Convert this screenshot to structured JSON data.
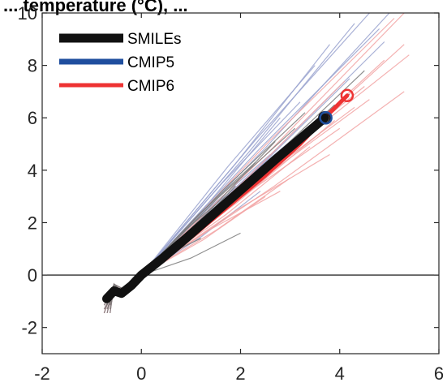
{
  "title": "... temperature (°C), ...",
  "chart_data": {
    "type": "line",
    "title": "",
    "xlabel": "",
    "ylabel": "",
    "xlim": [
      -2,
      6
    ],
    "ylim": [
      -3,
      10
    ],
    "xticks": [
      -2,
      0,
      2,
      4,
      6
    ],
    "yticks": [
      -2,
      0,
      2,
      4,
      6,
      8,
      10
    ],
    "xtick_labels": [
      "-2",
      "0",
      "2",
      "4",
      "6"
    ],
    "ytick_labels": [
      "-2",
      "0",
      "2",
      "4",
      "6",
      "8",
      "10"
    ],
    "grid": false,
    "zero_line": true,
    "legend": {
      "position": "top-left",
      "entries": [
        {
          "label": "SMILEs",
          "color": "#111111"
        },
        {
          "label": "CMIP5",
          "color": "#1f4e9e"
        },
        {
          "label": "CMIP6",
          "color": "#ee3333"
        }
      ]
    },
    "series": [
      {
        "name": "SMILEs",
        "color": "#111111",
        "x": [
          -0.7,
          -0.55,
          -0.4,
          -0.2,
          0.0,
          0.4,
          0.9,
          1.5,
          2.1,
          2.7,
          3.2,
          3.7
        ],
        "y": [
          -0.9,
          -0.6,
          -0.7,
          -0.4,
          0.0,
          0.6,
          1.4,
          2.4,
          3.4,
          4.4,
          5.2,
          6.0
        ],
        "end_marker": {
          "x": 3.7,
          "y": 6.0
        }
      },
      {
        "name": "CMIP5",
        "color": "#1f4e9e",
        "x": [
          -0.7,
          -0.55,
          -0.4,
          -0.2,
          0.0,
          0.4,
          0.9,
          1.5,
          2.1,
          2.7,
          3.2,
          3.72
        ],
        "y": [
          -0.85,
          -0.6,
          -0.65,
          -0.4,
          0.0,
          0.6,
          1.4,
          2.4,
          3.4,
          4.4,
          5.2,
          6.0
        ],
        "end_marker": {
          "x": 3.72,
          "y": 6.0
        }
      },
      {
        "name": "CMIP6",
        "color": "#ee3333",
        "x": [
          -0.7,
          -0.55,
          -0.4,
          -0.2,
          0.0,
          0.5,
          1.1,
          1.8,
          2.5,
          3.2,
          3.7,
          4.15
        ],
        "y": [
          -0.8,
          -0.6,
          -0.65,
          -0.4,
          0.0,
          0.7,
          1.6,
          2.7,
          3.8,
          5.0,
          6.0,
          6.85
        ],
        "end_marker": {
          "x": 4.15,
          "y": 6.85
        }
      }
    ],
    "ensemble_members": {
      "SMILEs": {
        "color": "#7a7a7a",
        "end_points": [
          [
            3.9,
            6.5
          ],
          [
            4.2,
            6.9
          ],
          [
            3.5,
            5.7
          ],
          [
            3.1,
            5.6
          ],
          [
            2.7,
            5.1
          ],
          [
            2.3,
            4.3
          ],
          [
            1.9,
            3.4
          ],
          [
            1.5,
            2.7
          ],
          [
            4.5,
            7.8
          ],
          [
            3.3,
            6.2
          ],
          [
            2.0,
            1.6
          ],
          [
            1.2,
            1.4
          ]
        ]
      },
      "CMIP5": {
        "color": "#9aa3cf",
        "end_points": [
          [
            5.0,
            10.0
          ],
          [
            4.6,
            10.0
          ],
          [
            4.3,
            9.6
          ],
          [
            4.8,
            9.4
          ],
          [
            3.8,
            8.8
          ],
          [
            3.5,
            8.0
          ],
          [
            4.9,
            8.9
          ],
          [
            3.2,
            6.6
          ],
          [
            2.8,
            6.0
          ],
          [
            3.0,
            5.1
          ],
          [
            2.4,
            3.2
          ],
          [
            2.6,
            4.6
          ],
          [
            4.2,
            7.5
          ]
        ]
      },
      "CMIP6": {
        "color": "#f2a3a3",
        "end_points": [
          [
            5.3,
            10.0
          ],
          [
            5.1,
            9.8
          ],
          [
            5.3,
            8.8
          ],
          [
            5.4,
            8.4
          ],
          [
            4.9,
            8.2
          ],
          [
            4.5,
            7.2
          ],
          [
            4.1,
            7.4
          ],
          [
            4.6,
            6.7
          ],
          [
            5.3,
            7.0
          ],
          [
            4.3,
            6.4
          ],
          [
            3.9,
            5.9
          ],
          [
            3.6,
            5.4
          ],
          [
            3.4,
            4.9
          ],
          [
            3.8,
            4.6
          ],
          [
            3.0,
            3.7
          ],
          [
            2.8,
            3.2
          ],
          [
            2.5,
            3.0
          ],
          [
            4.0,
            5.6
          ]
        ]
      }
    }
  }
}
